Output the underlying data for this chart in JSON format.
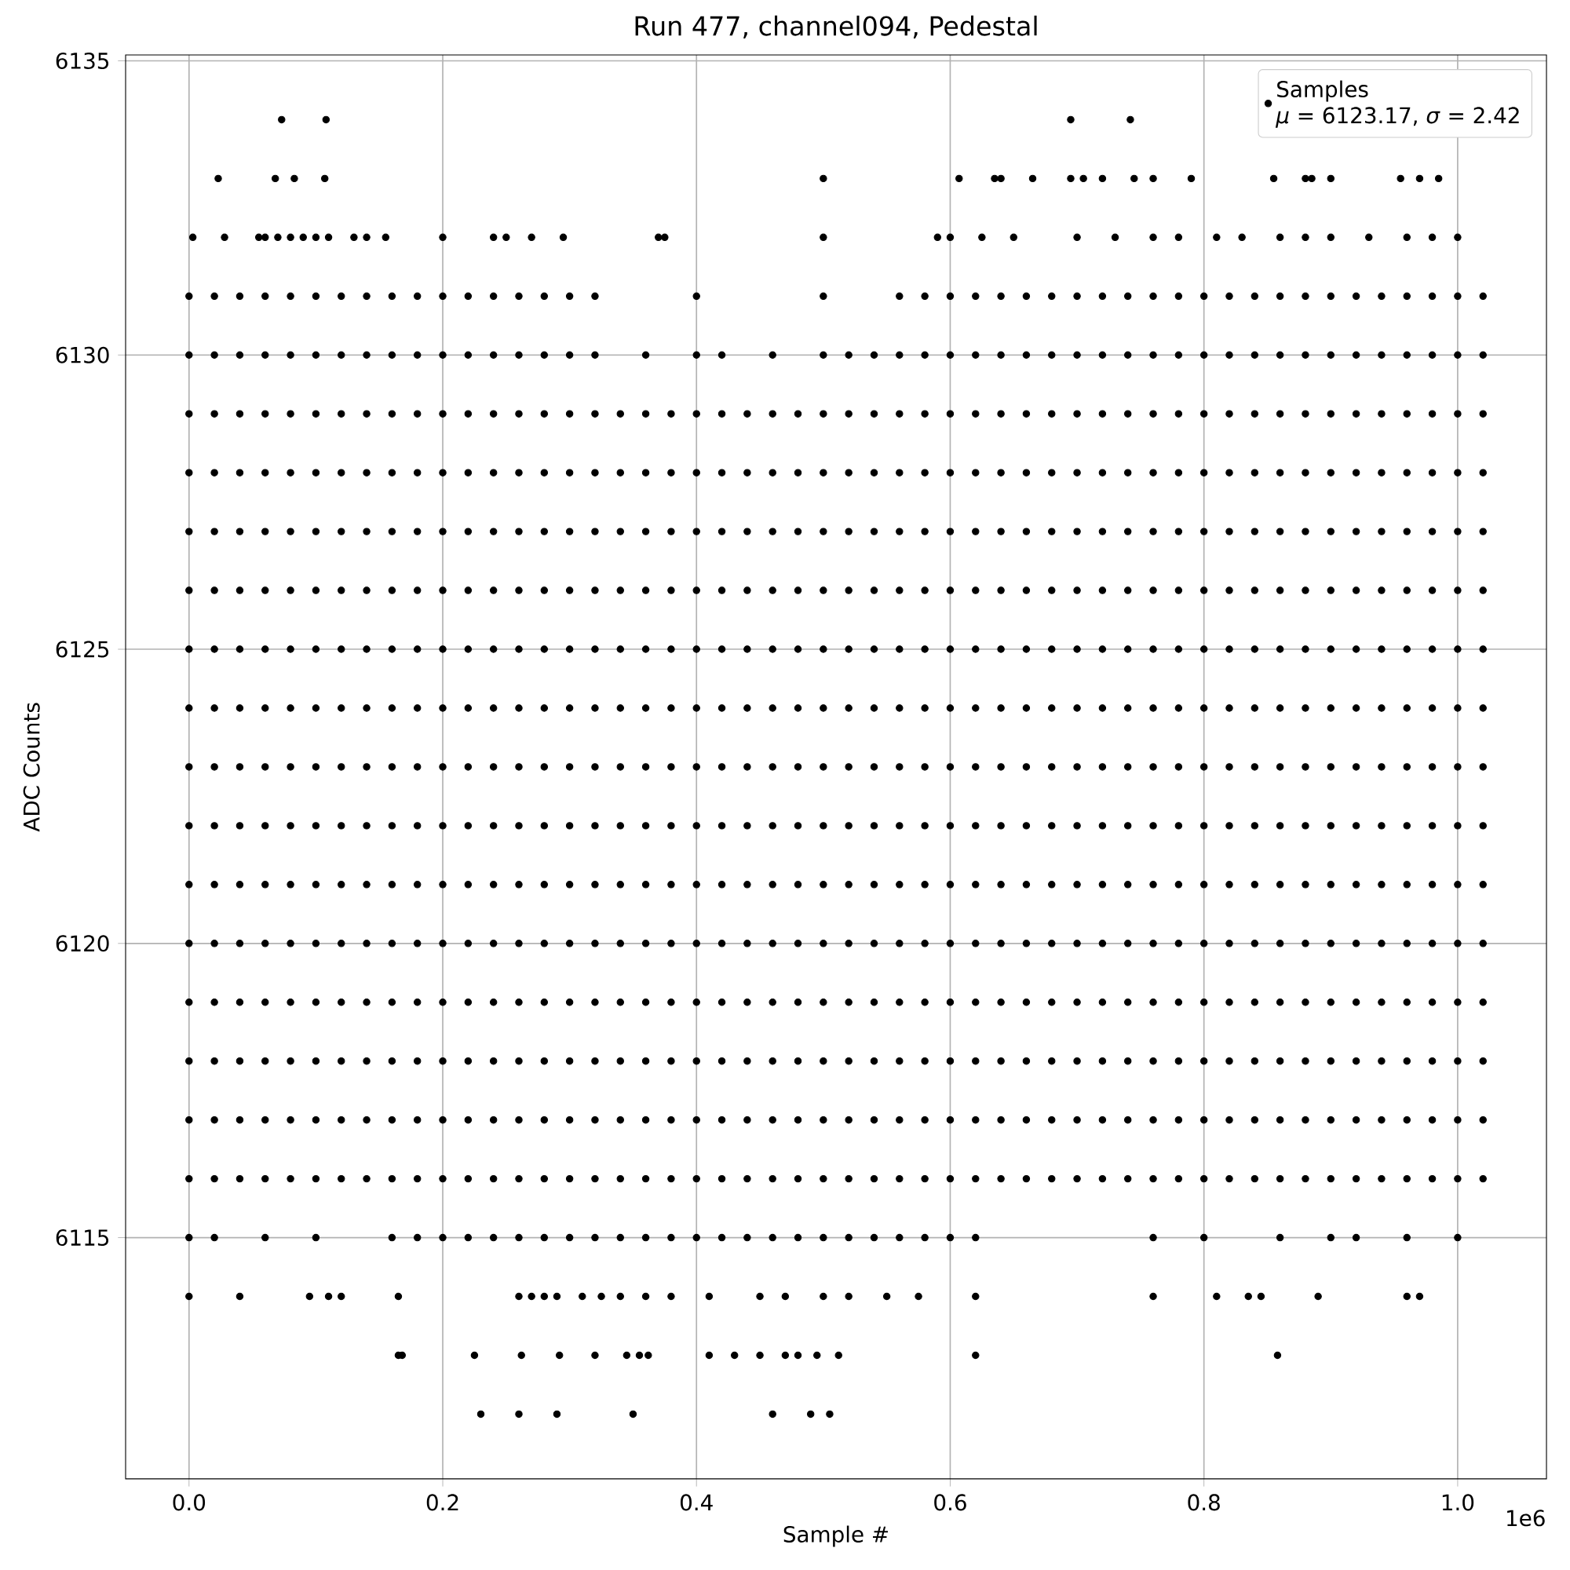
{
  "chart_data": {
    "type": "scatter",
    "title": "Run 477, channel094, Pedestal",
    "xlabel": "Sample #",
    "ylabel": "ADC Counts",
    "annotations": [
      "*μ* = 6123.17, *σ* = 2.42",
      "1e6"
    ],
    "xlim": [
      -0.05,
      1.07
    ],
    "ylim": [
      6110.9,
      6135.1
    ],
    "xticks": [
      {
        "value": 0,
        "label": "0.0"
      },
      0.2,
      0.4,
      0.6,
      0.8,
      {
        "value": 1,
        "label": "1.0"
      }
    ],
    "yticks": [
      6115,
      6120,
      6125,
      6130,
      6135
    ],
    "grid": true,
    "legend": "top right",
    "marker": "circle",
    "x": [
      0,
      0.02,
      0.04,
      0.06,
      0.08,
      0.1,
      0.12,
      0.14,
      0.16,
      0.18,
      0.2,
      0.22,
      0.24,
      0.26,
      0.28,
      0.3,
      0.32,
      0.34,
      0.36,
      0.38,
      0.4,
      0.42,
      0.44,
      0.46,
      0.48,
      0.5,
      0.52,
      0.54,
      0.56,
      0.58,
      0.6,
      0.62,
      0.64,
      0.66,
      0.68,
      0.7,
      0.72,
      0.74,
      0.76,
      0.78,
      0.8,
      0.82,
      0.84,
      0.86,
      0.88,
      0.9,
      0.92,
      0.94,
      0.96,
      0.98,
      1.0,
      1.02
    ],
    "series": [
      {
        "name": "Samples",
        "color": "#000000",
        "values": [
          6117,
          6117,
          6117,
          6117,
          6117,
          6117,
          6117,
          6117,
          6117,
          6117,
          6117,
          6117,
          6117,
          6117,
          6117,
          6117,
          6117,
          6117,
          6117,
          6117,
          6117,
          6117,
          6117,
          6117,
          6117,
          6117,
          6117,
          6117,
          6117,
          6117,
          6117,
          6117,
          6117,
          6117,
          6117,
          6117,
          6117,
          6117,
          6117,
          6117,
          6117,
          6117,
          6117,
          6117,
          6117,
          6117,
          6117,
          6117,
          6117,
          6117,
          6117,
          6117
        ]
      },
      {
        "color": "#000000",
        "values": [
          6116,
          6116,
          6116,
          6116,
          6116,
          6116,
          6116,
          6116,
          6116,
          6116,
          6116,
          6116,
          6116,
          6116,
          6116,
          6116,
          6116,
          6116,
          6116,
          6116,
          6116,
          6116,
          6116,
          6116,
          6116,
          6116,
          6116,
          6116,
          6116,
          6116,
          6116,
          6116,
          6116,
          6116,
          6116,
          6116,
          6116,
          6116,
          6116,
          6116,
          6116,
          6116,
          6116,
          6116,
          6116,
          6116,
          6116,
          6116,
          6116,
          6116,
          6116,
          6116
        ]
      },
      {
        "color": "#000000",
        "values": [
          6118,
          6118,
          6118,
          6118,
          6118,
          6118,
          6118,
          6118,
          6118,
          6118,
          6118,
          6118,
          6118,
          6118,
          6118,
          6118,
          6118,
          6118,
          6118,
          6118,
          6118,
          6118,
          6118,
          6118,
          6118,
          6118,
          6118,
          6118,
          6118,
          6118,
          6118,
          6118,
          6118,
          6118,
          6118,
          6118,
          6118,
          6118,
          6118,
          6118,
          6118,
          6118,
          6118,
          6118,
          6118,
          6118,
          6118,
          6118,
          6118,
          6118,
          6118,
          6118
        ]
      },
      {
        "color": "#000000",
        "values": [
          6119,
          6119,
          6119,
          6119,
          6119,
          6119,
          6119,
          6119,
          6119,
          6119,
          6119,
          6119,
          6119,
          6119,
          6119,
          6119,
          6119,
          6119,
          6119,
          6119,
          6119,
          6119,
          6119,
          6119,
          6119,
          6119,
          6119,
          6119,
          6119,
          6119,
          6119,
          6119,
          6119,
          6119,
          6119,
          6119,
          6119,
          6119,
          6119,
          6119,
          6119,
          6119,
          6119,
          6119,
          6119,
          6119,
          6119,
          6119,
          6119,
          6119,
          6119,
          6119
        ]
      },
      {
        "color": "#000000",
        "values": [
          6120,
          6120,
          6120,
          6120,
          6120,
          6120,
          6120,
          6120,
          6120,
          6120,
          6120,
          6120,
          6120,
          6120,
          6120,
          6120,
          6120,
          6120,
          6120,
          6120,
          6120,
          6120,
          6120,
          6120,
          6120,
          6120,
          6120,
          6120,
          6120,
          6120,
          6120,
          6120,
          6120,
          6120,
          6120,
          6120,
          6120,
          6120,
          6120,
          6120,
          6120,
          6120,
          6120,
          6120,
          6120,
          6120,
          6120,
          6120,
          6120,
          6120,
          6120,
          6120
        ]
      },
      {
        "color": "#000000",
        "values": [
          6121,
          6121,
          6121,
          6121,
          6121,
          6121,
          6121,
          6121,
          6121,
          6121,
          6121,
          6121,
          6121,
          6121,
          6121,
          6121,
          6121,
          6121,
          6121,
          6121,
          6121,
          6121,
          6121,
          6121,
          6121,
          6121,
          6121,
          6121,
          6121,
          6121,
          6121,
          6121,
          6121,
          6121,
          6121,
          6121,
          6121,
          6121,
          6121,
          6121,
          6121,
          6121,
          6121,
          6121,
          6121,
          6121,
          6121,
          6121,
          6121,
          6121,
          6121,
          6121
        ]
      },
      {
        "color": "#000000",
        "values": [
          6122,
          6122,
          6122,
          6122,
          6122,
          6122,
          6122,
          6122,
          6122,
          6122,
          6122,
          6122,
          6122,
          6122,
          6122,
          6122,
          6122,
          6122,
          6122,
          6122,
          6122,
          6122,
          6122,
          6122,
          6122,
          6122,
          6122,
          6122,
          6122,
          6122,
          6122,
          6122,
          6122,
          6122,
          6122,
          6122,
          6122,
          6122,
          6122,
          6122,
          6122,
          6122,
          6122,
          6122,
          6122,
          6122,
          6122,
          6122,
          6122,
          6122,
          6122,
          6122
        ]
      },
      {
        "color": "#000000",
        "values": [
          6123,
          6123,
          6123,
          6123,
          6123,
          6123,
          6123,
          6123,
          6123,
          6123,
          6123,
          6123,
          6123,
          6123,
          6123,
          6123,
          6123,
          6123,
          6123,
          6123,
          6123,
          6123,
          6123,
          6123,
          6123,
          6123,
          6123,
          6123,
          6123,
          6123,
          6123,
          6123,
          6123,
          6123,
          6123,
          6123,
          6123,
          6123,
          6123,
          6123,
          6123,
          6123,
          6123,
          6123,
          6123,
          6123,
          6123,
          6123,
          6123,
          6123,
          6123,
          6123
        ]
      },
      {
        "color": "#000000",
        "values": [
          6124,
          6124,
          6124,
          6124,
          6124,
          6124,
          6124,
          6124,
          6124,
          6124,
          6124,
          6124,
          6124,
          6124,
          6124,
          6124,
          6124,
          6124,
          6124,
          6124,
          6124,
          6124,
          6124,
          6124,
          6124,
          6124,
          6124,
          6124,
          6124,
          6124,
          6124,
          6124,
          6124,
          6124,
          6124,
          6124,
          6124,
          6124,
          6124,
          6124,
          6124,
          6124,
          6124,
          6124,
          6124,
          6124,
          6124,
          6124,
          6124,
          6124,
          6124,
          6124
        ]
      },
      {
        "color": "#000000",
        "values": [
          6125,
          6125,
          6125,
          6125,
          6125,
          6125,
          6125,
          6125,
          6125,
          6125,
          6125,
          6125,
          6125,
          6125,
          6125,
          6125,
          6125,
          6125,
          6125,
          6125,
          6125,
          6125,
          6125,
          6125,
          6125,
          6125,
          6125,
          6125,
          6125,
          6125,
          6125,
          6125,
          6125,
          6125,
          6125,
          6125,
          6125,
          6125,
          6125,
          6125,
          6125,
          6125,
          6125,
          6125,
          6125,
          6125,
          6125,
          6125,
          6125,
          6125,
          6125,
          6125
        ]
      },
      {
        "color": "#000000",
        "values": [
          6126,
          6126,
          6126,
          6126,
          6126,
          6126,
          6126,
          6126,
          6126,
          6126,
          6126,
          6126,
          6126,
          6126,
          6126,
          6126,
          6126,
          6126,
          6126,
          6126,
          6126,
          6126,
          6126,
          6126,
          6126,
          6126,
          6126,
          6126,
          6126,
          6126,
          6126,
          6126,
          6126,
          6126,
          6126,
          6126,
          6126,
          6126,
          6126,
          6126,
          6126,
          6126,
          6126,
          6126,
          6126,
          6126,
          6126,
          6126,
          6126,
          6126,
          6126,
          6126
        ]
      },
      {
        "color": "#000000",
        "values": [
          6127,
          6127,
          6127,
          6127,
          6127,
          6127,
          6127,
          6127,
          6127,
          6127,
          6127,
          6127,
          6127,
          6127,
          6127,
          6127,
          6127,
          6127,
          6127,
          6127,
          6127,
          6127,
          6127,
          6127,
          6127,
          6127,
          6127,
          6127,
          6127,
          6127,
          6127,
          6127,
          6127,
          6127,
          6127,
          6127,
          6127,
          6127,
          6127,
          6127,
          6127,
          6127,
          6127,
          6127,
          6127,
          6127,
          6127,
          6127,
          6127,
          6127,
          6127,
          6127
        ]
      },
      {
        "color": "#000000",
        "values": [
          6128,
          6128,
          6128,
          6128,
          6128,
          6128,
          6128,
          6128,
          6128,
          6128,
          6128,
          6128,
          6128,
          6128,
          6128,
          6128,
          6128,
          6128,
          6128,
          6128,
          6128,
          6128,
          6128,
          6128,
          6128,
          6128,
          6128,
          6128,
          6128,
          6128,
          6128,
          6128,
          6128,
          6128,
          6128,
          6128,
          6128,
          6128,
          6128,
          6128,
          6128,
          6128,
          6128,
          6128,
          6128,
          6128,
          6128,
          6128,
          6128,
          6128,
          6128,
          6128
        ]
      },
      {
        "color": "#000000",
        "values": [
          6129,
          6129,
          6129,
          6129,
          6129,
          6129,
          6129,
          6129,
          6129,
          6129,
          6129,
          6129,
          6129,
          6129,
          6129,
          6129,
          6129,
          6129,
          6129,
          6129,
          6129,
          6129,
          6129,
          6129,
          6129,
          6129,
          6129,
          6129,
          6129,
          6129,
          6129,
          6129,
          6129,
          6129,
          6129,
          6129,
          6129,
          6129,
          6129,
          6129,
          6129,
          6129,
          6129,
          6129,
          6129,
          6129,
          6129,
          6129,
          6129,
          6129,
          6129,
          6129
        ]
      },
      {
        "color": "#000000",
        "values": [
          6130,
          6130,
          6130,
          6130,
          6130,
          6130,
          6130,
          6130,
          6130,
          6130,
          6130,
          6130,
          6130,
          6130,
          6130,
          6130,
          6130,
          null,
          6130,
          null,
          6130,
          6130,
          null,
          6130,
          null,
          6130,
          6130,
          6130,
          6130,
          6130,
          6130,
          6130,
          6130,
          6130,
          6130,
          6130,
          6130,
          6130,
          6130,
          6130,
          6130,
          6130,
          6130,
          6130,
          6130,
          6130,
          6130,
          6130,
          6130,
          6130,
          6130,
          6130
        ]
      },
      {
        "color": "#000000",
        "values": [
          6131,
          6131,
          6131,
          6131,
          6131,
          6131,
          6131,
          6131,
          6131,
          6131,
          6131,
          6131,
          6131,
          6131,
          6131,
          6131,
          6131,
          null,
          null,
          null,
          6131,
          null,
          null,
          null,
          null,
          6131,
          null,
          null,
          6131,
          6131,
          6131,
          6131,
          6131,
          6131,
          6131,
          6131,
          6131,
          6131,
          6131,
          6131,
          6131,
          6131,
          6131,
          6131,
          6131,
          6131,
          6131,
          6131,
          6131,
          6131,
          6131,
          6131
        ]
      },
      {
        "color": "#000000",
        "values": [
          6115,
          6115,
          null,
          6115,
          null,
          6115,
          null,
          null,
          6115,
          6115,
          6115,
          6115,
          6115,
          6115,
          6115,
          6115,
          6115,
          6115,
          6115,
          6115,
          6115,
          6115,
          6115,
          6115,
          6115,
          6115,
          6115,
          6115,
          6115,
          6115,
          6115,
          6115,
          null,
          null,
          null,
          null,
          null,
          null,
          6115,
          null,
          6115,
          null,
          null,
          6115,
          null,
          6115,
          6115,
          null,
          6115,
          null,
          6115,
          null
        ]
      },
      {
        "color": "#000000",
        "x": [
          0.23,
          0.26,
          0.29,
          0.35,
          0.46,
          0.49,
          0.505,
          0.165,
          0.168,
          0.225,
          0.262,
          0.292,
          0.32,
          0.345,
          0.355,
          0.362,
          0.41,
          0.43,
          0.45,
          0.47,
          0.48,
          0.495,
          0.512,
          0.62,
          0.858,
          0,
          0.04,
          0.095,
          0.11,
          0.12,
          0.165,
          0.26,
          0.27,
          0.28,
          0.29,
          0.31,
          0.325,
          0.34,
          0.36,
          0.38,
          0.41,
          0.45,
          0.47,
          0.5,
          0.52,
          0.55,
          0.575,
          0.62,
          0.76,
          0.81,
          0.835,
          0.845,
          0.89,
          0.96,
          0.97,
          0.003,
          0.028,
          0.055,
          0.06,
          0.07,
          0.08,
          0.09,
          0.1,
          0.11,
          0.13,
          0.14,
          0.155,
          0.2,
          0.24,
          0.25,
          0.27,
          0.295,
          0.37,
          0.375,
          0.5,
          0.59,
          0.6,
          0.625,
          0.65,
          0.7,
          0.73,
          0.76,
          0.78,
          0.81,
          0.83,
          0.86,
          0.88,
          0.9,
          0.93,
          0.96,
          0.98,
          1.0,
          0.023,
          0.068,
          0.083,
          0.107,
          0.5,
          0.607,
          0.635,
          0.64,
          0.665,
          0.695,
          0.705,
          0.72,
          0.745,
          0.76,
          0.79,
          0.855,
          0.88,
          0.885,
          0.9,
          0.955,
          0.97,
          0.985,
          0.073,
          0.108,
          0.695,
          0.742
        ],
        "values": [
          6112,
          6112,
          6112,
          6112,
          6112,
          6112,
          6112,
          6113,
          6113,
          6113,
          6113,
          6113,
          6113,
          6113,
          6113,
          6113,
          6113,
          6113,
          6113,
          6113,
          6113,
          6113,
          6113,
          6113,
          6113,
          6114,
          6114,
          6114,
          6114,
          6114,
          6114,
          6114,
          6114,
          6114,
          6114,
          6114,
          6114,
          6114,
          6114,
          6114,
          6114,
          6114,
          6114,
          6114,
          6114,
          6114,
          6114,
          6114,
          6114,
          6114,
          6114,
          6114,
          6114,
          6114,
          6114,
          6132,
          6132,
          6132,
          6132,
          6132,
          6132,
          6132,
          6132,
          6132,
          6132,
          6132,
          6132,
          6132,
          6132,
          6132,
          6132,
          6132,
          6132,
          6132,
          6132,
          6132,
          6132,
          6132,
          6132,
          6132,
          6132,
          6132,
          6132,
          6132,
          6132,
          6132,
          6132,
          6132,
          6132,
          6132,
          6132,
          6132,
          6133,
          6133,
          6133,
          6133,
          6133,
          6133,
          6133,
          6133,
          6133,
          6133,
          6133,
          6133,
          6133,
          6133,
          6133,
          6133,
          6133,
          6133,
          6133,
          6133,
          6133,
          6133,
          6134,
          6134,
          6134,
          6134
        ]
      }
    ]
  }
}
